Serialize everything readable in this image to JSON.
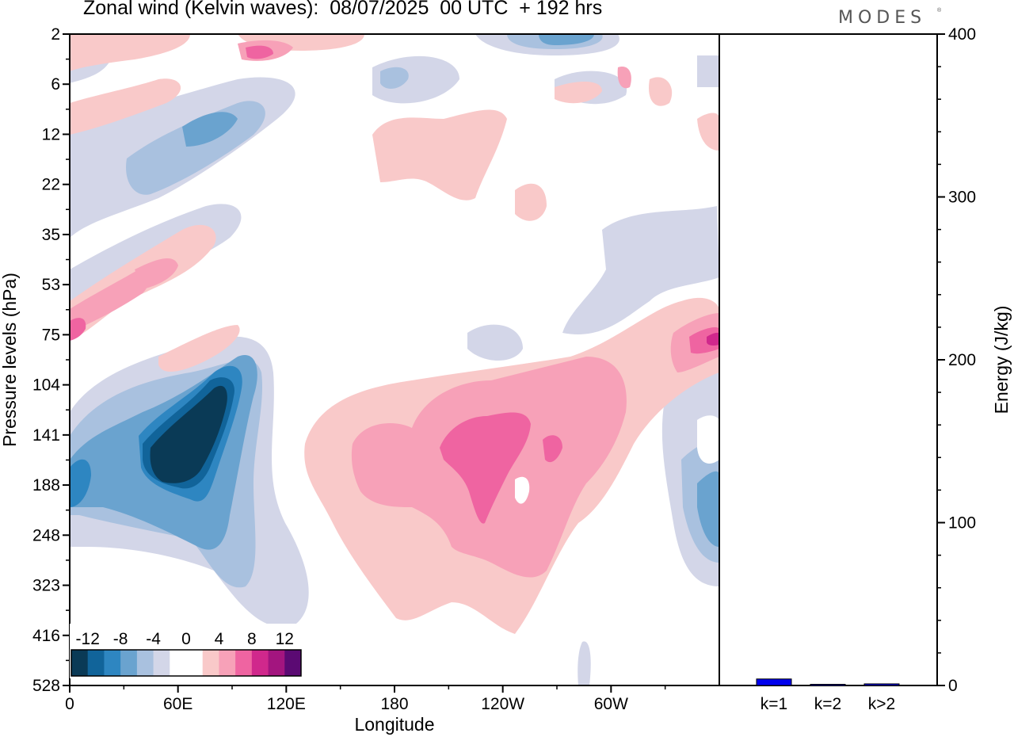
{
  "header": {
    "title": "Zonal wind (Kelvin waves):  08/07/2025  00 UTC  + 192 hrs",
    "brand": "MODES",
    "brand_mark": "®"
  },
  "chart_data": [
    {
      "type": "heatmap",
      "title": "Zonal wind (Kelvin waves):  08/07/2025  00 UTC  + 192 hrs",
      "xlabel": "Longitude",
      "ylabel": "Pressure levels (hPa)",
      "x_ticks": [
        "0",
        "60E",
        "120E",
        "180",
        "120W",
        "60W"
      ],
      "x_tick_degrees": [
        0,
        60,
        120,
        180,
        240,
        300
      ],
      "xlim_degrees": [
        0,
        360
      ],
      "y_ticks": [
        "2",
        "6",
        "12",
        "22",
        "35",
        "53",
        "75",
        "104",
        "141",
        "188",
        "248",
        "323",
        "416",
        "528"
      ],
      "y_scale": "model levels (top 2 hPa, bottom 528 hPa)",
      "colorbar": {
        "labels": [
          "-12",
          "-8",
          "-4",
          "0",
          "4",
          "8",
          "12"
        ],
        "levels": [
          -14,
          -12,
          -10,
          -8,
          -6,
          -4,
          -2,
          0,
          2,
          4,
          6,
          8,
          10,
          12,
          14
        ],
        "colors": [
          "#0a3a56",
          "#11649a",
          "#2e86c1",
          "#6aa3cf",
          "#a9c1df",
          "#d3d6e8",
          "#ffffff",
          "#ffffff",
          "#f9c9c9",
          "#f7a1b8",
          "#ef64a1",
          "#d0288c",
          "#a3157f",
          "#5b0a73"
        ]
      },
      "features": [
        {
          "region": "60E-90E, 110-250 hPa",
          "value_range": [
            -14,
            -12
          ],
          "sign": "easterly"
        },
        {
          "region": "0-20E, 150-250 hPa",
          "value_range": [
            -8,
            -6
          ],
          "sign": "easterly"
        },
        {
          "region": "120W-100W, 130-230 hPa",
          "value_range": [
            6,
            8
          ],
          "sign": "westerly"
        },
        {
          "region": "90E-100E (top), 2-6 hPa",
          "value_range": [
            -8,
            -4
          ],
          "sign": "easterly"
        },
        {
          "region": "0-30E, 60-80 hPa",
          "value_range": [
            4,
            8
          ],
          "sign": "westerly"
        }
      ]
    },
    {
      "type": "bar",
      "categories": [
        "k=1",
        "k=2",
        "k>2"
      ],
      "values": [
        4,
        0.5,
        1
      ],
      "ylabel": "Energy (J/kg)",
      "ylim": [
        0,
        400
      ],
      "y_ticks": [
        "0",
        "100",
        "200",
        "300",
        "400"
      ],
      "bar_color": "#0000ee"
    }
  ]
}
